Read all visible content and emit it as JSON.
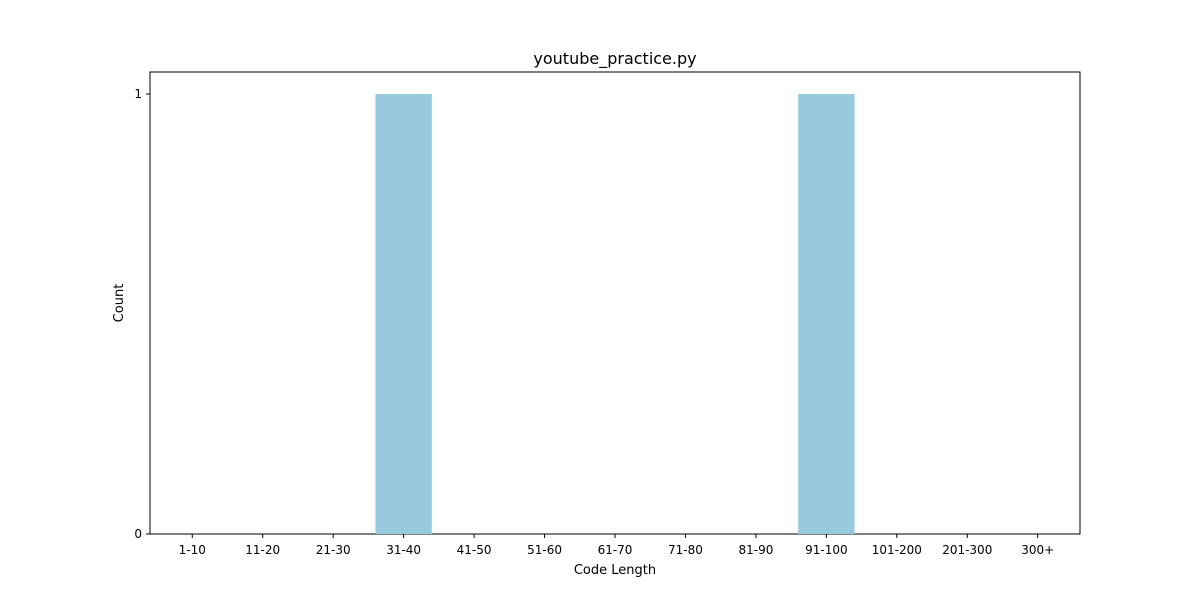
{
  "chart_data": {
    "type": "bar",
    "title": "youtube_practice.py",
    "xlabel": "Code Length",
    "ylabel": "Count",
    "categories": [
      "1-10",
      "11-20",
      "21-30",
      "31-40",
      "41-50",
      "51-60",
      "61-70",
      "71-80",
      "81-90",
      "91-100",
      "101-200",
      "201-300",
      "300+"
    ],
    "values": [
      0,
      0,
      0,
      1,
      0,
      0,
      0,
      0,
      0,
      1,
      0,
      0,
      0
    ],
    "yticks": [
      0,
      1
    ],
    "ylim": [
      0,
      1.05
    ],
    "grid": false,
    "legend": "none",
    "bar_color": "#96c9de"
  }
}
